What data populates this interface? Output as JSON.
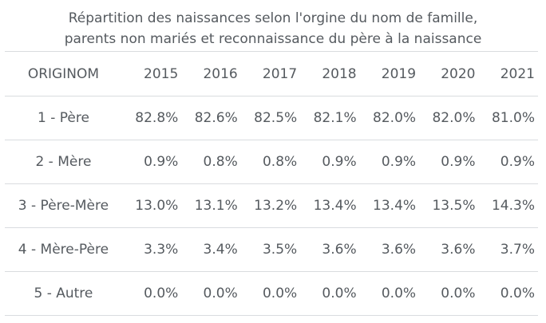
{
  "chart_data": {
    "type": "table",
    "title_lines": [
      "Répartition des naissances selon l'orgine du nom de famille,",
      "parents non mariés et reconnaissance du père à la naissance"
    ],
    "row_header": "ORIGINOM",
    "columns": [
      "2015",
      "2016",
      "2017",
      "2018",
      "2019",
      "2020",
      "2021"
    ],
    "rows": [
      {
        "label": "1 - Père",
        "values": [
          "82.8%",
          "82.6%",
          "82.5%",
          "82.1%",
          "82.0%",
          "82.0%",
          "81.0%"
        ]
      },
      {
        "label": "2 - Mère",
        "values": [
          "0.9%",
          "0.8%",
          "0.8%",
          "0.9%",
          "0.9%",
          "0.9%",
          "0.9%"
        ]
      },
      {
        "label": "3 - Père-Mère",
        "values": [
          "13.0%",
          "13.1%",
          "13.2%",
          "13.4%",
          "13.4%",
          "13.5%",
          "14.3%"
        ]
      },
      {
        "label": "4 - Mère-Père",
        "values": [
          "3.3%",
          "3.4%",
          "3.5%",
          "3.6%",
          "3.6%",
          "3.6%",
          "3.7%"
        ]
      },
      {
        "label": "5 - Autre",
        "values": [
          "0.0%",
          "0.0%",
          "0.0%",
          "0.0%",
          "0.0%",
          "0.0%",
          "0.0%"
        ]
      }
    ]
  }
}
